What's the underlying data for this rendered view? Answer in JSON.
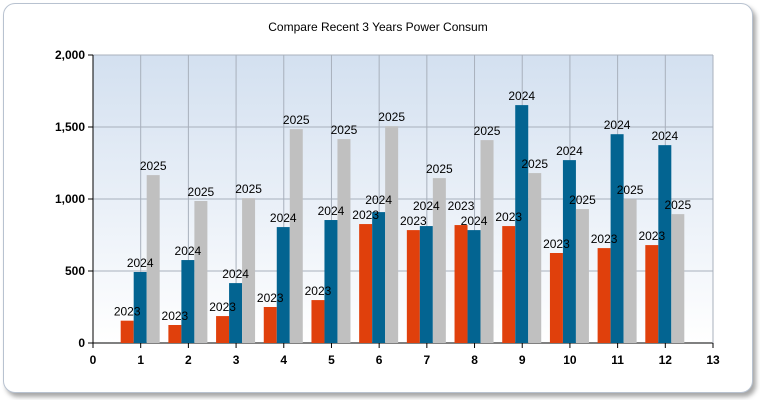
{
  "chart_data": {
    "type": "bar",
    "title": "Compare Recent 3 Years Power Consum",
    "xlabel": "",
    "ylabel": "",
    "xlim": [
      0,
      13
    ],
    "ylim": [
      0,
      2000
    ],
    "x_ticks": [
      "0",
      "1",
      "2",
      "3",
      "4",
      "5",
      "6",
      "7",
      "8",
      "9",
      "10",
      "11",
      "12",
      "13"
    ],
    "y_ticks": [
      "0",
      "500",
      "1,000",
      "1,500",
      "2,000"
    ],
    "grid": true,
    "categories": [
      1,
      2,
      3,
      4,
      5,
      6,
      7,
      8,
      9,
      10,
      11,
      12
    ],
    "series": [
      {
        "name": "2023",
        "color": "#e0400c",
        "values": [
          155,
          125,
          187,
          250,
          298,
          826,
          784,
          819,
          812,
          625,
          659,
          680
        ]
      },
      {
        "name": "2024",
        "color": "#036491",
        "values": [
          493,
          576,
          416,
          805,
          854,
          909,
          812,
          784,
          1652,
          1270,
          1450,
          1374
        ]
      },
      {
        "name": "2025",
        "color": "#c0c0c0",
        "values": [
          1166,
          986,
          1006,
          1485,
          1416,
          1506,
          1145,
          1409,
          1180,
          930,
          999,
          895
        ]
      }
    ]
  }
}
